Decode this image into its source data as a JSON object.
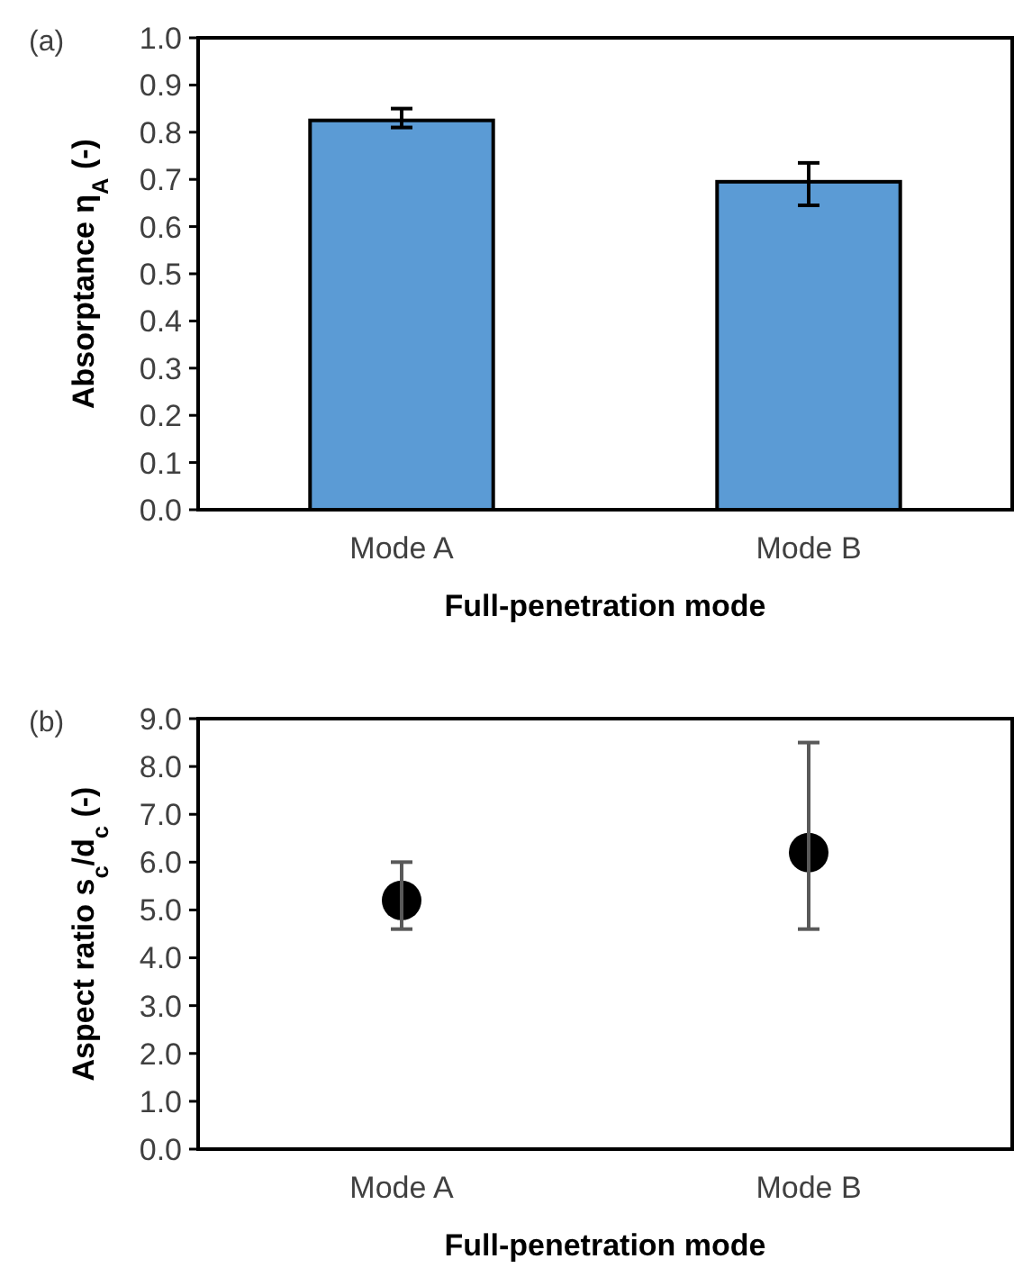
{
  "chart_data": [
    {
      "type": "bar",
      "categories": [
        "Mode A",
        "Mode B"
      ],
      "xlabel": "Full-penetration mode",
      "ylabel": "Absorptance η$_{A}$ (-)",
      "annotations": [
        "(a)"
      ],
      "series": [
        {
          "color": "#5b9bd5",
          "values": [
            0.825,
            0.695
          ],
          "errors": [
            [
              0.81,
              0.85
            ],
            [
              0.645,
              0.735
            ]
          ]
        }
      ],
      "ylim": [
        0,
        1
      ],
      "yticks": [
        {
          "value": 0,
          "label": "0.0"
        },
        {
          "value": 0.1,
          "label": "0.1"
        },
        {
          "value": 0.2,
          "label": "0.2"
        },
        {
          "value": 0.3,
          "label": "0.3"
        },
        {
          "value": 0.4,
          "label": "0.4"
        },
        {
          "value": 0.5,
          "label": "0.5"
        },
        {
          "value": 0.6,
          "label": "0.6"
        },
        {
          "value": 0.7,
          "label": "0.7"
        },
        {
          "value": 0.8,
          "label": "0.8"
        },
        {
          "value": 0.9,
          "label": "0.9"
        },
        {
          "value": 1,
          "label": "1.0"
        }
      ],
      "grid": false
    },
    {
      "type": "scatter",
      "categories": [
        "Mode A",
        "Mode B"
      ],
      "xlabel": "Full-penetration mode",
      "ylabel": "Aspect ratio s$_{c}$/d$_{c}$ (-)",
      "annotations": [
        "(b)"
      ],
      "marker": "circle",
      "series": [
        {
          "color": "#000000",
          "values": [
            5.2,
            6.2
          ],
          "errors": [
            [
              4.6,
              6.0
            ],
            [
              4.6,
              8.5
            ]
          ]
        }
      ],
      "ylim": [
        0,
        9
      ],
      "yticks": [
        {
          "value": 0,
          "label": "0.0"
        },
        {
          "value": 1,
          "label": "1.0"
        },
        {
          "value": 2,
          "label": "2.0"
        },
        {
          "value": 3,
          "label": "3.0"
        },
        {
          "value": 4,
          "label": "4.0"
        },
        {
          "value": 5,
          "label": "5.0"
        },
        {
          "value": 6,
          "label": "6.0"
        },
        {
          "value": 7,
          "label": "7.0"
        },
        {
          "value": 8,
          "label": "8.0"
        },
        {
          "value": 9,
          "label": "9.0"
        }
      ],
      "grid": false
    }
  ]
}
